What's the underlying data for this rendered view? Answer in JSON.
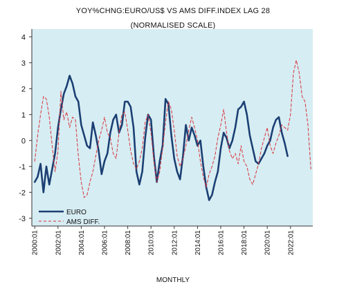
{
  "chart_data": {
    "type": "line",
    "title": "YOY%CHNG:EURO/US$ VS AMS DIFF.INDEX LAG 28",
    "subtitle": "(NORMALISED SCALE)",
    "xlabel": "MONTHLY",
    "ylabel": "",
    "xlim": [
      "1999-10",
      "2023-12"
    ],
    "ylim": [
      -3.3,
      4.3
    ],
    "yticks": [
      -3,
      -2,
      -1,
      0,
      1,
      2,
      3,
      4
    ],
    "xticks": [
      "2000:01",
      "2002:01",
      "2004:01",
      "2006:01",
      "2008:01",
      "2010:01",
      "2012:01",
      "2014:01",
      "2016:01",
      "2018:01",
      "2020:01",
      "2022:01"
    ],
    "grid": false,
    "legend_position": "bottom-left",
    "plot_background": "#d6edf3",
    "series": [
      {
        "name": "EURO",
        "style": "solid",
        "color": "#1b3f73",
        "points": [
          [
            "2000-01",
            -1.6
          ],
          [
            "2000-04",
            -1.4
          ],
          [
            "2000-07",
            -0.9
          ],
          [
            "2000-10",
            -2.0
          ],
          [
            "2001-01",
            -1.0
          ],
          [
            "2001-04",
            -1.7
          ],
          [
            "2001-07",
            -1.1
          ],
          [
            "2001-10",
            -0.5
          ],
          [
            "2002-01",
            0.5
          ],
          [
            "2002-04",
            1.2
          ],
          [
            "2002-07",
            1.8
          ],
          [
            "2002-10",
            2.1
          ],
          [
            "2003-01",
            2.5
          ],
          [
            "2003-04",
            2.2
          ],
          [
            "2003-07",
            1.7
          ],
          [
            "2003-10",
            1.5
          ],
          [
            "2004-01",
            0.6
          ],
          [
            "2004-04",
            0.2
          ],
          [
            "2004-07",
            -0.2
          ],
          [
            "2004-10",
            -0.3
          ],
          [
            "2005-01",
            0.7
          ],
          [
            "2005-04",
            0.2
          ],
          [
            "2005-07",
            -0.4
          ],
          [
            "2005-10",
            -1.3
          ],
          [
            "2006-01",
            -0.8
          ],
          [
            "2006-04",
            -0.5
          ],
          [
            "2006-07",
            0.3
          ],
          [
            "2006-10",
            0.8
          ],
          [
            "2007-01",
            1.0
          ],
          [
            "2007-04",
            0.3
          ],
          [
            "2007-07",
            0.6
          ],
          [
            "2007-10",
            1.5
          ],
          [
            "2008-01",
            1.5
          ],
          [
            "2008-04",
            1.3
          ],
          [
            "2008-07",
            0.5
          ],
          [
            "2008-10",
            -1.2
          ],
          [
            "2009-01",
            -1.7
          ],
          [
            "2009-04",
            -1.2
          ],
          [
            "2009-07",
            0.1
          ],
          [
            "2009-10",
            1.0
          ],
          [
            "2010-01",
            0.8
          ],
          [
            "2010-04",
            -0.6
          ],
          [
            "2010-07",
            -1.6
          ],
          [
            "2010-10",
            -0.8
          ],
          [
            "2011-01",
            -0.2
          ],
          [
            "2011-04",
            1.6
          ],
          [
            "2011-07",
            1.4
          ],
          [
            "2011-10",
            0.2
          ],
          [
            "2012-01",
            -0.7
          ],
          [
            "2012-04",
            -1.2
          ],
          [
            "2012-07",
            -1.5
          ],
          [
            "2012-10",
            -0.6
          ],
          [
            "2013-01",
            0.6
          ],
          [
            "2013-04",
            0.0
          ],
          [
            "2013-07",
            0.5
          ],
          [
            "2013-10",
            0.2
          ],
          [
            "2014-01",
            -0.2
          ],
          [
            "2014-04",
            0.0
          ],
          [
            "2014-07",
            -1.0
          ],
          [
            "2014-10",
            -1.8
          ],
          [
            "2015-01",
            -2.3
          ],
          [
            "2015-04",
            -2.1
          ],
          [
            "2015-07",
            -1.6
          ],
          [
            "2015-10",
            -1.2
          ],
          [
            "2016-01",
            -0.3
          ],
          [
            "2016-04",
            0.3
          ],
          [
            "2016-07",
            0.1
          ],
          [
            "2016-10",
            -0.3
          ],
          [
            "2017-01",
            0.0
          ],
          [
            "2017-04",
            0.5
          ],
          [
            "2017-07",
            1.2
          ],
          [
            "2017-10",
            1.3
          ],
          [
            "2018-01",
            1.5
          ],
          [
            "2018-04",
            1.0
          ],
          [
            "2018-07",
            0.2
          ],
          [
            "2018-10",
            -0.3
          ],
          [
            "2019-01",
            -0.8
          ],
          [
            "2019-04",
            -0.9
          ],
          [
            "2019-07",
            -0.7
          ],
          [
            "2019-10",
            -0.5
          ],
          [
            "2020-01",
            -0.2
          ],
          [
            "2020-04",
            0.0
          ],
          [
            "2020-07",
            0.5
          ],
          [
            "2020-10",
            0.8
          ],
          [
            "2021-01",
            0.9
          ],
          [
            "2021-04",
            0.3
          ],
          [
            "2021-07",
            -0.1
          ],
          [
            "2021-10",
            -0.6
          ]
        ]
      },
      {
        "name": "AMS DIFF.",
        "style": "dashed",
        "color": "#d9333b",
        "points": [
          [
            "2000-01",
            -0.8
          ],
          [
            "2000-04",
            0.2
          ],
          [
            "2000-07",
            1.0
          ],
          [
            "2000-10",
            1.7
          ],
          [
            "2001-01",
            1.6
          ],
          [
            "2001-04",
            0.9
          ],
          [
            "2001-07",
            -0.2
          ],
          [
            "2001-10",
            -1.2
          ],
          [
            "2002-01",
            -0.4
          ],
          [
            "2002-04",
            1.9
          ],
          [
            "2002-07",
            0.8
          ],
          [
            "2002-10",
            1.1
          ],
          [
            "2003-01",
            0.5
          ],
          [
            "2003-04",
            0.9
          ],
          [
            "2003-07",
            0.8
          ],
          [
            "2003-10",
            -0.6
          ],
          [
            "2004-01",
            -1.6
          ],
          [
            "2004-04",
            -2.2
          ],
          [
            "2004-07",
            -2.1
          ],
          [
            "2004-10",
            -1.6
          ],
          [
            "2005-01",
            -1.2
          ],
          [
            "2005-04",
            -0.6
          ],
          [
            "2005-07",
            0.0
          ],
          [
            "2005-10",
            0.4
          ],
          [
            "2006-01",
            0.9
          ],
          [
            "2006-04",
            0.3
          ],
          [
            "2006-07",
            0.1
          ],
          [
            "2006-10",
            -0.5
          ],
          [
            "2007-01",
            -0.7
          ],
          [
            "2007-04",
            0.3
          ],
          [
            "2007-07",
            1.0
          ],
          [
            "2007-10",
            1.1
          ],
          [
            "2008-01",
            0.4
          ],
          [
            "2008-04",
            -0.4
          ],
          [
            "2008-07",
            -0.9
          ],
          [
            "2008-10",
            -1.1
          ],
          [
            "2009-01",
            -0.8
          ],
          [
            "2009-04",
            -0.3
          ],
          [
            "2009-07",
            0.7
          ],
          [
            "2009-10",
            1.0
          ],
          [
            "2010-01",
            0.3
          ],
          [
            "2010-04",
            -0.8
          ],
          [
            "2010-07",
            -1.6
          ],
          [
            "2010-10",
            -1.2
          ],
          [
            "2011-01",
            -0.3
          ],
          [
            "2011-04",
            0.7
          ],
          [
            "2011-07",
            1.5
          ],
          [
            "2011-10",
            1.2
          ],
          [
            "2012-01",
            0.4
          ],
          [
            "2012-04",
            -0.6
          ],
          [
            "2012-07",
            -1.0
          ],
          [
            "2012-10",
            -0.7
          ],
          [
            "2013-01",
            -0.2
          ],
          [
            "2013-04",
            0.4
          ],
          [
            "2013-07",
            0.9
          ],
          [
            "2013-10",
            0.5
          ],
          [
            "2014-01",
            0.0
          ],
          [
            "2014-04",
            -0.8
          ],
          [
            "2014-07",
            -1.4
          ],
          [
            "2014-10",
            -1.8
          ],
          [
            "2015-01",
            -1.3
          ],
          [
            "2015-04",
            -1.0
          ],
          [
            "2015-07",
            -0.6
          ],
          [
            "2015-10",
            0.1
          ],
          [
            "2016-01",
            0.6
          ],
          [
            "2016-04",
            1.2
          ],
          [
            "2016-07",
            0.3
          ],
          [
            "2016-10",
            -0.4
          ],
          [
            "2017-01",
            -0.7
          ],
          [
            "2017-04",
            -0.5
          ],
          [
            "2017-07",
            -0.9
          ],
          [
            "2017-10",
            -0.2
          ],
          [
            "2018-01",
            -0.8
          ],
          [
            "2018-04",
            -1.0
          ],
          [
            "2018-07",
            -1.5
          ],
          [
            "2018-10",
            -1.7
          ],
          [
            "2019-01",
            -1.3
          ],
          [
            "2019-04",
            -0.9
          ],
          [
            "2019-07",
            -0.3
          ],
          [
            "2019-10",
            0.1
          ],
          [
            "2020-01",
            0.5
          ],
          [
            "2020-04",
            -0.2
          ],
          [
            "2020-07",
            -0.5
          ],
          [
            "2020-10",
            -0.1
          ],
          [
            "2021-01",
            0.2
          ],
          [
            "2021-04",
            0.6
          ],
          [
            "2021-07",
            0.5
          ],
          [
            "2021-10",
            0.4
          ],
          [
            "2022-01",
            1.0
          ],
          [
            "2022-04",
            2.6
          ],
          [
            "2022-07",
            3.1
          ],
          [
            "2022-10",
            2.6
          ],
          [
            "2023-01",
            1.7
          ],
          [
            "2023-04",
            1.5
          ],
          [
            "2023-07",
            0.6
          ],
          [
            "2023-10",
            -1.1
          ]
        ]
      }
    ]
  }
}
